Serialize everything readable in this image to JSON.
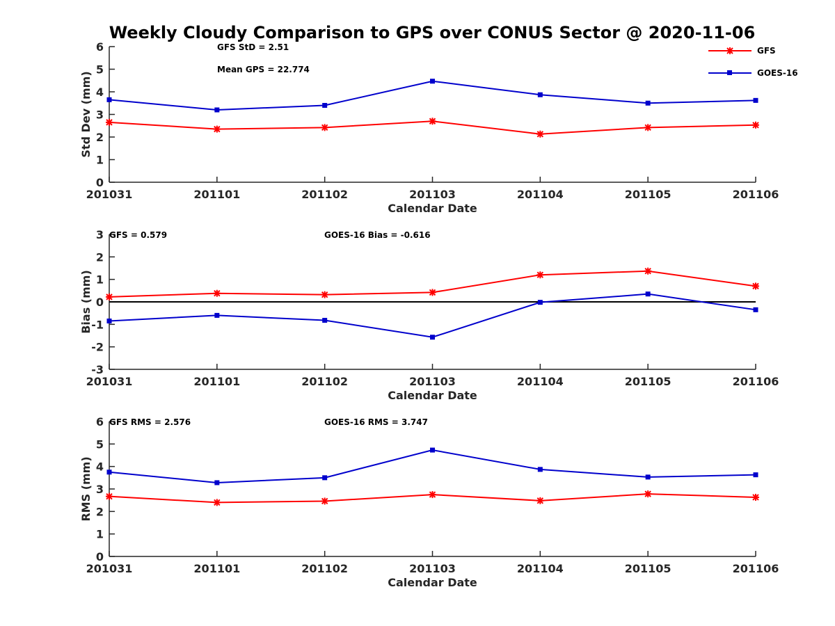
{
  "figure": {
    "title": "Weekly Cloudy Comparison to GPS over CONUS Sector @ 2020-11-06",
    "legend": {
      "placement": "top-right",
      "entries": [
        {
          "name": "GFS",
          "color": "#ff0000",
          "marker": "asterisk"
        },
        {
          "name": "GOES-16",
          "color": "#0000cc",
          "marker": "square"
        }
      ]
    }
  },
  "chart_data": [
    {
      "type": "line",
      "xlabel": "Calendar Date",
      "ylabel": "Std Dev (mm)",
      "ylim": [
        0,
        6
      ],
      "yticks": [
        "0",
        "1",
        "2",
        "3",
        "4",
        "5",
        "6"
      ],
      "categories": [
        "201031",
        "201101",
        "201102",
        "201103",
        "201104",
        "201105",
        "201106"
      ],
      "annotations": [
        "GFS StD = 2.51",
        "Mean GPS = 22.774"
      ],
      "series": [
        {
          "name": "GFS",
          "color": "#ff0000",
          "values": [
            2.65,
            2.35,
            2.42,
            2.7,
            2.13,
            2.42,
            2.53
          ]
        },
        {
          "name": "GOES-16",
          "color": "#0000cc",
          "values": [
            3.65,
            3.2,
            3.4,
            4.47,
            3.87,
            3.5,
            3.62
          ]
        }
      ]
    },
    {
      "type": "line",
      "xlabel": "Calendar Date",
      "ylabel": "Bias (mm)",
      "ylim": [
        -3,
        3
      ],
      "yticks": [
        "-3",
        "-2",
        "-1",
        "0",
        "1",
        "2",
        "3"
      ],
      "zero_line": true,
      "categories": [
        "201031",
        "201101",
        "201102",
        "201103",
        "201104",
        "201105",
        "201106"
      ],
      "annotations": [
        "GFS = 0.579",
        "GOES-16 Bias  = -0.616"
      ],
      "series": [
        {
          "name": "GFS",
          "color": "#ff0000",
          "values": [
            0.22,
            0.38,
            0.32,
            0.42,
            1.2,
            1.37,
            0.7
          ]
        },
        {
          "name": "GOES-16",
          "color": "#0000cc",
          "values": [
            -0.85,
            -0.6,
            -0.82,
            -1.57,
            -0.02,
            0.35,
            -0.35
          ]
        }
      ]
    },
    {
      "type": "line",
      "xlabel": "Calendar Date",
      "ylabel": "RMS (mm)",
      "ylim": [
        0,
        6
      ],
      "yticks": [
        "0",
        "1",
        "2",
        "3",
        "4",
        "5",
        "6"
      ],
      "categories": [
        "201031",
        "201101",
        "201102",
        "201103",
        "201104",
        "201105",
        "201106"
      ],
      "annotations": [
        "GFS RMS = 2.576",
        "GOES-16 RMS = 3.747"
      ],
      "series": [
        {
          "name": "GFS",
          "color": "#ff0000",
          "values": [
            2.67,
            2.4,
            2.46,
            2.75,
            2.48,
            2.78,
            2.63
          ]
        },
        {
          "name": "GOES-16",
          "color": "#0000cc",
          "values": [
            3.75,
            3.28,
            3.5,
            4.73,
            3.87,
            3.53,
            3.63
          ]
        }
      ]
    }
  ]
}
